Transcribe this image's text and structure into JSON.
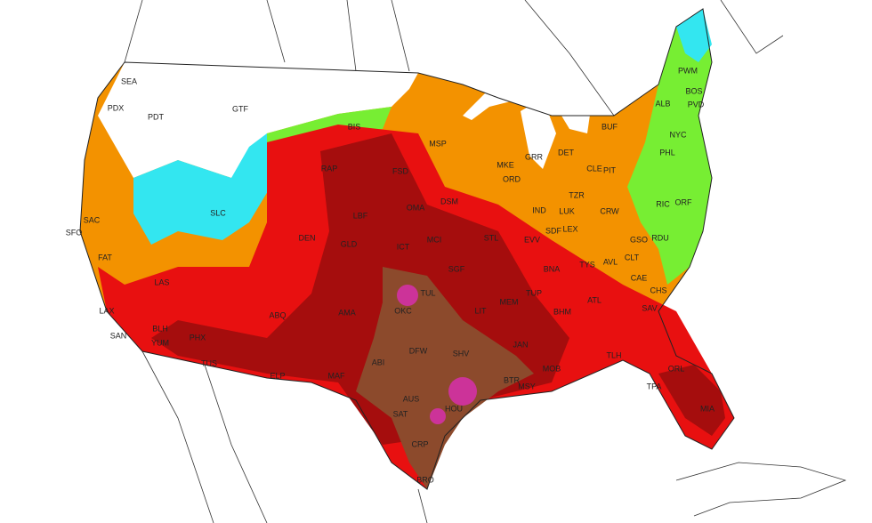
{
  "labels": [
    "SEA",
    "PDX",
    "PDT",
    "GTF",
    "BIS",
    "MSP",
    "RAP",
    "FSD",
    "MKE",
    "GRR",
    "DET",
    "CLE",
    "PIT",
    "BUF",
    "ALB",
    "PWM",
    "BOS",
    "PVD",
    "NYC",
    "PHL",
    "SAC",
    "SFO",
    "SLC",
    "DEN",
    "LBF",
    "OMA",
    "DSM",
    "ORD",
    "IND",
    "TZR",
    "LUK",
    "CRW",
    "RIC",
    "ORF",
    "SDF",
    "LEX",
    "GSO",
    "RDU",
    "STL",
    "EVV",
    "MCI",
    "GLD",
    "FAT",
    "LAS",
    "ICT",
    "TUL",
    "SGF",
    "BNA",
    "TYS",
    "AVL",
    "CLT",
    "CAE",
    "CHS",
    "SAV",
    "LAX",
    "OKC",
    "LIT",
    "MEM",
    "TUP",
    "BHM",
    "ATL",
    "ABQ",
    "AMA",
    "SAN",
    "BLH",
    "PHX",
    "YUM",
    "TUS",
    "ELP",
    "MAF",
    "ABI",
    "DFW",
    "SHV",
    "JAN",
    "MOB",
    "TLH",
    "BTR",
    "MSY",
    "AUS",
    "HOU",
    "SAT",
    "CRP",
    "BRO",
    "TPA",
    "ORL",
    "MIA"
  ]
}
